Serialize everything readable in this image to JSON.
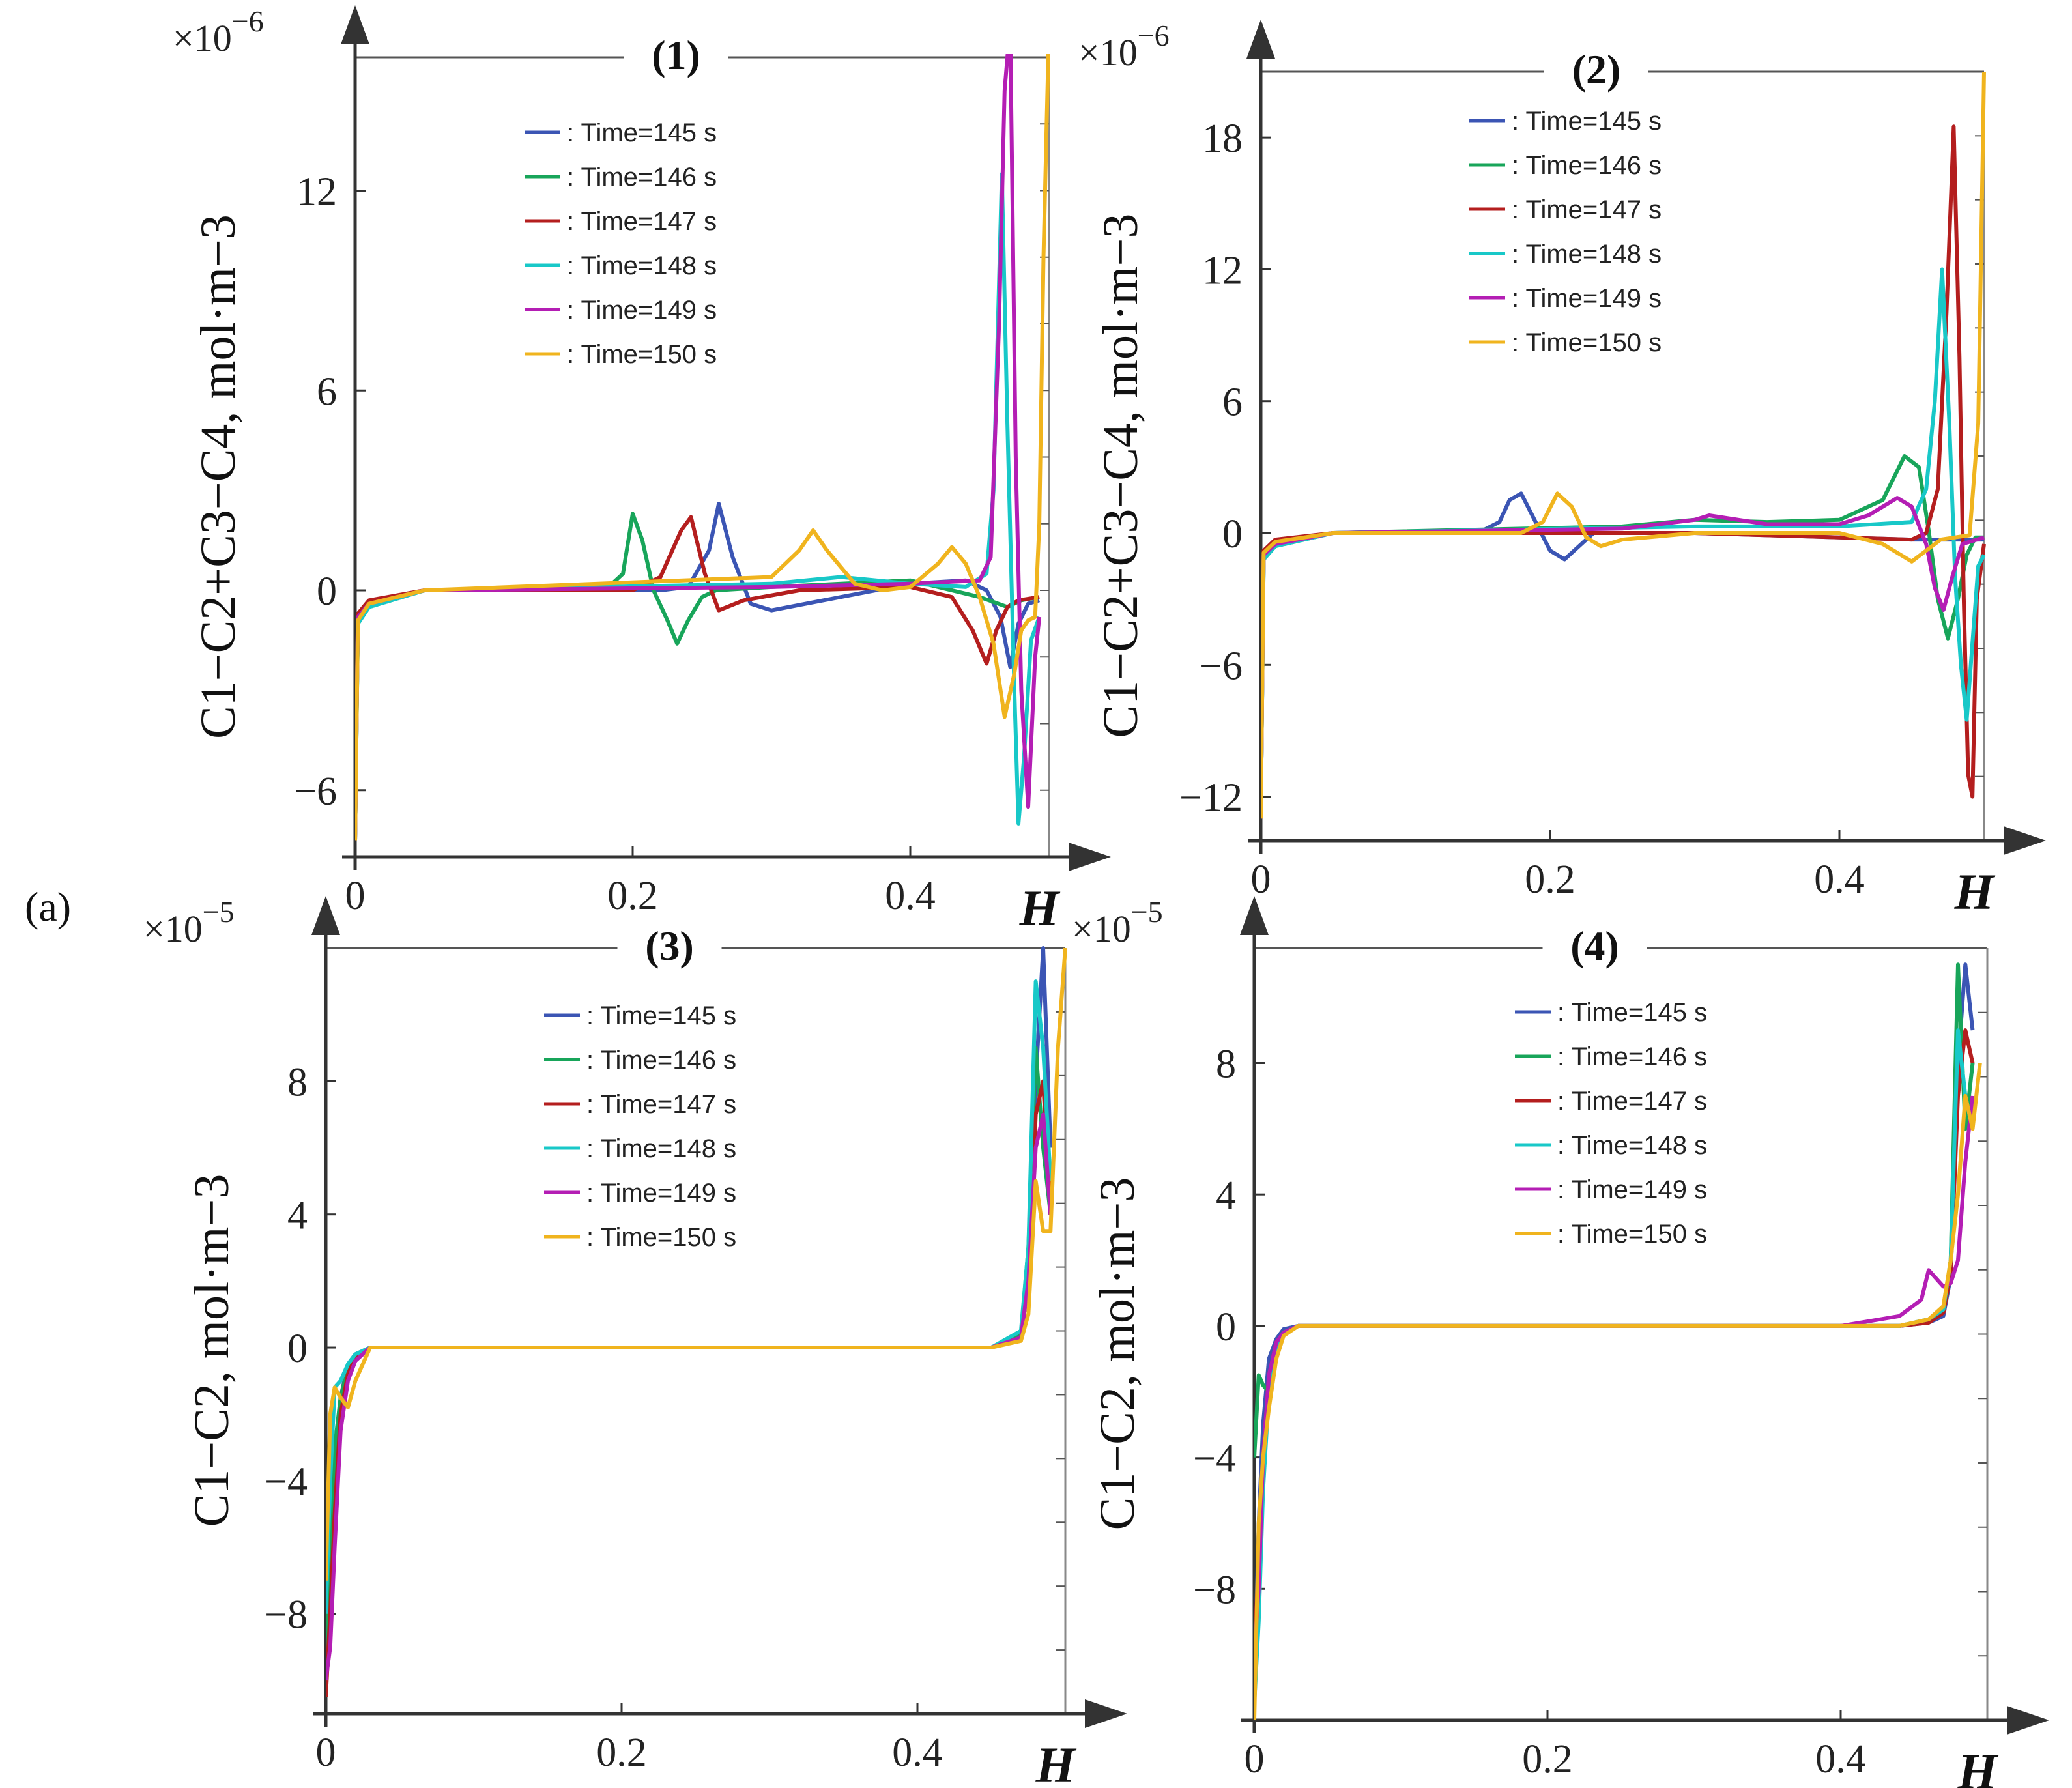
{
  "figure_label": "(a)",
  "colors": {
    "Time=145 s": "#3b55b4",
    "Time=146 s": "#18a55a",
    "Time=147 s": "#b41e1e",
    "Time=148 s": "#18c8c8",
    "Time=149 s": "#b41eb4",
    "Time=150 s": "#f0b41e"
  },
  "chart_data": [
    {
      "id": "p1",
      "type": "line",
      "title": "(1)",
      "xlabel": "H",
      "ylabel": "C1−C2+C3−C4, mol·m−3",
      "yscale_base": "×10",
      "yscale_exp": "−6",
      "xlim": [
        0,
        0.5
      ],
      "ylim": [
        -8,
        16
      ],
      "x_ticks": [
        "0",
        "0.2",
        "0.4"
      ],
      "y_ticks": [
        "12",
        "6",
        "0",
        "−6"
      ],
      "legend_location": "top-center",
      "series": [
        {
          "name": ": Time=145 s",
          "x": [
            0,
            0.002,
            0.01,
            0.05,
            0.22,
            0.24,
            0.255,
            0.262,
            0.272,
            0.285,
            0.3,
            0.35,
            0.4,
            0.44,
            0.455,
            0.465,
            0.472,
            0.478,
            0.485,
            0.493
          ],
          "y": [
            -7.5,
            -0.8,
            -0.4,
            0,
            0,
            0.1,
            1.2,
            2.6,
            1.0,
            -0.4,
            -0.6,
            -0.2,
            0.2,
            0.3,
            0,
            -0.8,
            -2.3,
            -1.0,
            -0.4,
            -0.3
          ]
        },
        {
          "name": ": Time=146 s",
          "x": [
            0,
            0.002,
            0.01,
            0.05,
            0.18,
            0.193,
            0.2,
            0.207,
            0.215,
            0.225,
            0.232,
            0.24,
            0.25,
            0.26,
            0.3,
            0.4,
            0.45,
            0.47,
            0.48,
            0.493
          ],
          "y": [
            -7.5,
            -1.0,
            -0.5,
            0,
            0,
            0.5,
            2.3,
            1.5,
            0,
            -0.9,
            -1.6,
            -0.9,
            -0.2,
            0,
            0.1,
            0.3,
            -0.2,
            -0.5,
            -0.3,
            -0.2
          ]
        },
        {
          "name": ": Time=147 s",
          "x": [
            0,
            0.002,
            0.01,
            0.05,
            0.2,
            0.22,
            0.235,
            0.242,
            0.252,
            0.262,
            0.28,
            0.32,
            0.4,
            0.43,
            0.445,
            0.455,
            0.462,
            0.47,
            0.478,
            0.493
          ],
          "y": [
            -7.5,
            -0.7,
            -0.3,
            0,
            0,
            0.4,
            1.8,
            2.2,
            0.5,
            -0.6,
            -0.3,
            0,
            0.1,
            -0.2,
            -1.2,
            -2.2,
            -1.2,
            -0.5,
            -0.3,
            -0.2
          ]
        },
        {
          "name": ": Time=148 s",
          "x": [
            0,
            0.002,
            0.01,
            0.05,
            0.3,
            0.35,
            0.4,
            0.44,
            0.455,
            0.46,
            0.466,
            0.47,
            0.475,
            0.478,
            0.482,
            0.487,
            0.493
          ],
          "y": [
            -7.5,
            -1.0,
            -0.5,
            0,
            0.2,
            0.4,
            0.2,
            0.1,
            0.5,
            3,
            12.5,
            5,
            -3,
            -7,
            -5,
            -1.5,
            -0.8
          ]
        },
        {
          "name": ": Time=149 s",
          "x": [
            0,
            0.002,
            0.01,
            0.05,
            0.3,
            0.4,
            0.45,
            0.458,
            0.464,
            0.468,
            0.472,
            0.476,
            0.48,
            0.485,
            0.49,
            0.493
          ],
          "y": [
            -7.5,
            -0.8,
            -0.4,
            0,
            0.1,
            0.2,
            0.3,
            1,
            8,
            15,
            17,
            4,
            -3,
            -6.5,
            -2,
            -0.8
          ]
        },
        {
          "name": ": Time=150 s",
          "x": [
            0,
            0.002,
            0.01,
            0.05,
            0.3,
            0.32,
            0.33,
            0.34,
            0.36,
            0.38,
            0.4,
            0.42,
            0.43,
            0.44,
            0.45,
            0.46,
            0.468,
            0.475,
            0.48,
            0.485,
            0.49,
            0.493,
            0.496,
            0.5
          ],
          "y": [
            -7.5,
            -0.9,
            -0.4,
            0,
            0.4,
            1.2,
            1.8,
            1.2,
            0.2,
            0,
            0.1,
            0.8,
            1.3,
            0.8,
            -0.2,
            -1.6,
            -3.8,
            -2.5,
            -1.2,
            -0.9,
            -0.8,
            2,
            10,
            17
          ]
        }
      ]
    },
    {
      "id": "p2",
      "type": "line",
      "title": "(2)",
      "xlabel": "H",
      "ylabel": "C1−C2+C3−C4, mol·m−3",
      "yscale_base": "×10",
      "yscale_exp": "−6",
      "xlim": [
        0,
        0.5
      ],
      "ylim": [
        -14,
        21
      ],
      "x_ticks": [
        "0",
        "0.2",
        "0.4"
      ],
      "y_ticks": [
        "18",
        "12",
        "6",
        "0",
        "−6",
        "−12"
      ],
      "legend_location": "top-center",
      "series": [
        {
          "name": ": Time=145 s",
          "x": [
            0,
            0.002,
            0.01,
            0.05,
            0.15,
            0.165,
            0.172,
            0.18,
            0.19,
            0.2,
            0.21,
            0.22,
            0.23,
            0.3,
            0.4,
            0.45,
            0.5
          ],
          "y": [
            -13,
            -1.0,
            -0.5,
            0,
            0,
            0.5,
            1.5,
            1.8,
            0.5,
            -0.8,
            -1.2,
            -0.6,
            0,
            0,
            -0.2,
            -0.3,
            -0.3
          ]
        },
        {
          "name": ": Time=146 s",
          "x": [
            0,
            0.002,
            0.01,
            0.05,
            0.25,
            0.3,
            0.35,
            0.4,
            0.43,
            0.445,
            0.455,
            0.462,
            0.468,
            0.475,
            0.482,
            0.488,
            0.494,
            0.5
          ],
          "y": [
            -13,
            -1.2,
            -0.6,
            0,
            0.3,
            0.6,
            0.5,
            0.6,
            1.5,
            3.5,
            3,
            0,
            -3,
            -4.8,
            -3,
            -1,
            -0.2,
            -0.2
          ]
        },
        {
          "name": ": Time=147 s",
          "x": [
            0,
            0.002,
            0.01,
            0.05,
            0.3,
            0.4,
            0.45,
            0.46,
            0.468,
            0.474,
            0.479,
            0.483,
            0.486,
            0.489,
            0.492,
            0.495,
            0.5
          ],
          "y": [
            -13,
            -0.8,
            -0.3,
            0,
            0,
            -0.2,
            -0.3,
            0,
            2,
            10,
            18.5,
            8,
            -3,
            -11,
            -12,
            -3,
            -0.5
          ]
        },
        {
          "name": ": Time=148 s",
          "x": [
            0,
            0.002,
            0.01,
            0.05,
            0.3,
            0.4,
            0.45,
            0.46,
            0.466,
            0.471,
            0.476,
            0.48,
            0.484,
            0.488,
            0.492,
            0.496,
            0.5
          ],
          "y": [
            -13,
            -1.2,
            -0.6,
            0,
            0.3,
            0.3,
            0.5,
            2,
            6,
            12,
            5,
            -2,
            -6,
            -8.5,
            -5,
            -1.5,
            -1
          ]
        },
        {
          "name": ": Time=149 s",
          "x": [
            0,
            0.002,
            0.01,
            0.05,
            0.25,
            0.3,
            0.31,
            0.35,
            0.4,
            0.42,
            0.44,
            0.45,
            0.46,
            0.466,
            0.472,
            0.478,
            0.485,
            0.5
          ],
          "y": [
            -13,
            -1.0,
            -0.5,
            0,
            0.2,
            0.6,
            0.8,
            0.4,
            0.4,
            0.8,
            1.6,
            1.2,
            -0.5,
            -2.5,
            -3.5,
            -2,
            -0.5,
            -0.2
          ]
        },
        {
          "name": ": Time=150 s",
          "x": [
            0,
            0.002,
            0.01,
            0.05,
            0.18,
            0.195,
            0.205,
            0.215,
            0.225,
            0.235,
            0.25,
            0.3,
            0.4,
            0.43,
            0.45,
            0.46,
            0.47,
            0.48,
            0.49,
            0.496,
            0.5
          ],
          "y": [
            -13,
            -0.9,
            -0.4,
            0,
            0,
            0.5,
            1.8,
            1.2,
            -0.2,
            -0.6,
            -0.3,
            0,
            0,
            -0.5,
            -1.3,
            -0.8,
            -0.3,
            -0.2,
            -0.1,
            5,
            21
          ]
        }
      ]
    },
    {
      "id": "p3",
      "type": "line",
      "title": "(3)",
      "xlabel": "H",
      "ylabel": "C1−C2, mol·m−3",
      "yscale_base": "×10",
      "yscale_exp": "−5",
      "xlim": [
        0,
        0.5
      ],
      "ylim": [
        -11,
        12
      ],
      "x_ticks": [
        "0",
        "0.2",
        "0.4"
      ],
      "y_ticks": [
        "8",
        "4",
        "0",
        "−4",
        "−8"
      ],
      "legend_location": "top-center",
      "series": [
        {
          "name": ": Time=145 s",
          "x": [
            0,
            0.003,
            0.006,
            0.01,
            0.015,
            0.02,
            0.03,
            0.05,
            0.45,
            0.47,
            0.475,
            0.48,
            0.485,
            0.49
          ],
          "y": [
            -10,
            -7,
            -4,
            -1.5,
            -0.5,
            -0.2,
            0,
            0,
            0,
            0.3,
            2,
            8,
            12,
            6
          ]
        },
        {
          "name": ": Time=146 s",
          "x": [
            0,
            0.003,
            0.006,
            0.01,
            0.015,
            0.02,
            0.03,
            0.05,
            0.45,
            0.47,
            0.475,
            0.48,
            0.485,
            0.49
          ],
          "y": [
            -9,
            -6,
            -3,
            -1.5,
            -0.6,
            -0.3,
            0,
            0,
            0,
            0.4,
            3,
            9,
            6,
            4
          ]
        },
        {
          "name": ": Time=147 s",
          "x": [
            0,
            0.003,
            0.006,
            0.01,
            0.015,
            0.02,
            0.03,
            0.05,
            0.45,
            0.47,
            0.475,
            0.48,
            0.485,
            0.49
          ],
          "y": [
            -10.5,
            -8,
            -5,
            -2,
            -0.8,
            -0.3,
            0,
            0,
            0,
            0.3,
            2,
            7,
            8,
            4
          ]
        },
        {
          "name": ": Time=148 s",
          "x": [
            0,
            0.003,
            0.006,
            0.01,
            0.015,
            0.02,
            0.03,
            0.05,
            0.45,
            0.47,
            0.475,
            0.48,
            0.485,
            0.49
          ],
          "y": [
            -8,
            -4,
            -1.2,
            -1.0,
            -0.5,
            -0.2,
            0,
            0,
            0,
            0.5,
            3,
            11,
            9,
            5
          ]
        },
        {
          "name": ": Time=149 s",
          "x": [
            0,
            0.003,
            0.006,
            0.01,
            0.015,
            0.02,
            0.03,
            0.05,
            0.45,
            0.47,
            0.475,
            0.48,
            0.485,
            0.49
          ],
          "y": [
            -10,
            -9,
            -6,
            -2.5,
            -1,
            -0.4,
            0,
            0,
            0,
            0.3,
            2,
            6,
            7,
            4
          ]
        },
        {
          "name": ": Time=150 s",
          "x": [
            0,
            0.003,
            0.006,
            0.01,
            0.015,
            0.02,
            0.03,
            0.05,
            0.45,
            0.47,
            0.475,
            0.48,
            0.485,
            0.49,
            0.495,
            0.5
          ],
          "y": [
            -7,
            -2,
            -1.2,
            -1.5,
            -1.8,
            -1,
            0,
            0,
            0,
            0.2,
            1,
            5,
            3.5,
            3.5,
            9,
            12
          ]
        }
      ]
    },
    {
      "id": "p4",
      "type": "line",
      "title": "(4)",
      "xlabel": "H",
      "ylabel": "C1−C2, mol·m−3",
      "yscale_base": "×10",
      "yscale_exp": "−5",
      "xlim": [
        0,
        0.5
      ],
      "ylim": [
        -12,
        11.5
      ],
      "x_ticks": [
        "0",
        "0.2",
        "0.4"
      ],
      "y_ticks": [
        "8",
        "4",
        "0",
        "−4",
        "−8"
      ],
      "legend_location": "top-center",
      "series": [
        {
          "name": ": Time=145 s",
          "x": [
            0,
            0.003,
            0.006,
            0.01,
            0.015,
            0.02,
            0.03,
            0.05,
            0.44,
            0.46,
            0.47,
            0.475,
            0.48,
            0.485,
            0.49
          ],
          "y": [
            -11,
            -6,
            -3,
            -1,
            -0.4,
            -0.1,
            0,
            0,
            0,
            0.1,
            0.3,
            1.5,
            8,
            11,
            9
          ]
        },
        {
          "name": ": Time=146 s",
          "x": [
            0,
            0.003,
            0.006,
            0.01,
            0.015,
            0.02,
            0.03,
            0.05,
            0.44,
            0.46,
            0.47,
            0.475,
            0.48,
            0.485,
            0.49
          ],
          "y": [
            -4,
            -1.5,
            -1.8,
            -2,
            -0.8,
            -0.2,
            0,
            0,
            0,
            0.2,
            0.5,
            2,
            11,
            6,
            8
          ]
        },
        {
          "name": ": Time=147 s",
          "x": [
            0,
            0.003,
            0.006,
            0.01,
            0.015,
            0.02,
            0.03,
            0.05,
            0.44,
            0.46,
            0.47,
            0.475,
            0.48,
            0.485,
            0.49
          ],
          "y": [
            -10,
            -7,
            -4,
            -1.5,
            -0.5,
            -0.2,
            0,
            0,
            0,
            0.1,
            0.4,
            1.6,
            7,
            9,
            8
          ]
        },
        {
          "name": ": Time=148 s",
          "x": [
            0,
            0.003,
            0.006,
            0.01,
            0.015,
            0.02,
            0.03,
            0.05,
            0.44,
            0.46,
            0.47,
            0.475,
            0.48,
            0.485,
            0.49
          ],
          "y": [
            -11.5,
            -9,
            -5,
            -2,
            -0.6,
            -0.2,
            0,
            0,
            0,
            0.2,
            0.5,
            2,
            9,
            7,
            6
          ]
        },
        {
          "name": ": Time=149 s",
          "x": [
            0,
            0.003,
            0.006,
            0.01,
            0.015,
            0.02,
            0.03,
            0.05,
            0.4,
            0.44,
            0.455,
            0.46,
            0.47,
            0.475,
            0.48,
            0.485,
            0.49
          ],
          "y": [
            -10,
            -8,
            -4,
            -1.5,
            -0.5,
            -0.2,
            0,
            0,
            0,
            0.3,
            0.8,
            1.7,
            1.2,
            1.3,
            2,
            5,
            7
          ]
        },
        {
          "name": ": Time=150 s",
          "x": [
            0,
            0.003,
            0.006,
            0.01,
            0.015,
            0.02,
            0.03,
            0.05,
            0.44,
            0.46,
            0.47,
            0.475,
            0.48,
            0.485,
            0.49,
            0.495
          ],
          "y": [
            -12,
            -6,
            -4,
            -2.5,
            -1,
            -0.3,
            0,
            0,
            0,
            0.2,
            0.6,
            2,
            4,
            7,
            6,
            8
          ]
        }
      ]
    }
  ]
}
